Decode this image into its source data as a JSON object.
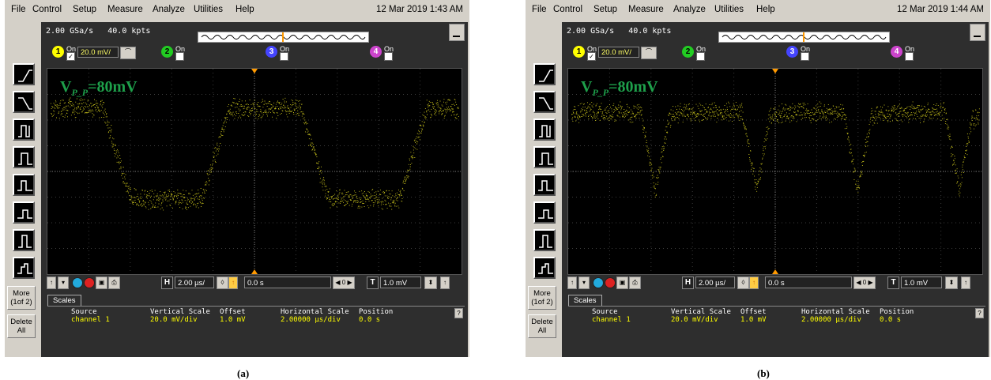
{
  "panels": [
    {
      "caption": "(a)",
      "menu": [
        "File",
        "Control",
        "Setup",
        "Measure",
        "Analyze",
        "Utilities",
        "Help"
      ],
      "datetime": "12 Mar 2019  1:43 AM",
      "acquisition": "2.00 GSa/s   40.0 kpts",
      "channels": [
        {
          "num": "1",
          "on_label": "On",
          "checked": "✓",
          "scale": "20.0 mV/",
          "color": "#ffff00"
        },
        {
          "num": "2",
          "on_label": "On",
          "checked": "",
          "color": "#22cc22"
        },
        {
          "num": "3",
          "on_label": "On",
          "checked": "",
          "color": "#4444ff"
        },
        {
          "num": "4",
          "on_label": "On",
          "checked": "",
          "color": "#cc44cc"
        }
      ],
      "annotation": {
        "v": "V",
        "sub": "P_P",
        "value": "=80mV"
      },
      "trace_shape": "square",
      "timebase": "2.00 µs/",
      "delay": "0.0 s",
      "trigger_level": "1.0 mV",
      "h_icon": "H",
      "t_icon": "T",
      "delay_nav": "◀ 0 ▶",
      "side_buttons": {
        "more": "More\n(1of 2)",
        "delete": "Delete\nAll"
      },
      "scales": {
        "tab": "Scales",
        "headers": [
          "Source",
          "Vertical Scale",
          "Offset",
          "Horizontal Scale",
          "Position"
        ],
        "values": [
          "channel 1",
          "20.0 mV/div",
          "1.0 mV",
          "2.00000 µs/div",
          "0.0 s"
        ],
        "help": "?"
      }
    },
    {
      "caption": "(b)",
      "menu": [
        "File",
        "Control",
        "Setup",
        "Measure",
        "Analyze",
        "Utilities",
        "Help"
      ],
      "datetime": "12 Mar 2019  1:44 AM",
      "acquisition": "2.00 GSa/s   40.0 kpts",
      "channels": [
        {
          "num": "1",
          "on_label": "On",
          "checked": "✓",
          "scale": "20.0 mV/",
          "color": "#ffff00"
        },
        {
          "num": "2",
          "on_label": "On",
          "checked": "",
          "color": "#22cc22"
        },
        {
          "num": "3",
          "on_label": "On",
          "checked": "",
          "color": "#4444ff"
        },
        {
          "num": "4",
          "on_label": "On",
          "checked": "",
          "color": "#cc44cc"
        }
      ],
      "annotation": {
        "v": "V",
        "sub": "P_P",
        "value": "=80mV"
      },
      "trace_shape": "notched",
      "timebase": "2.00 µs/",
      "delay": "0.0 s",
      "trigger_level": "1.0 mV",
      "h_icon": "H",
      "t_icon": "T",
      "delay_nav": "◀ 0 ▶",
      "side_buttons": {
        "more": "More\n(1of 2)",
        "delete": "Delete\nAll"
      },
      "scales": {
        "tab": "Scales",
        "headers": [
          "Source",
          "Vertical Scale",
          "Offset",
          "Horizontal Scale",
          "Position"
        ],
        "values": [
          "channel 1",
          "20.0 mV/div",
          "1.0 mV",
          "2.00000 µs/div",
          "0.0 s"
        ],
        "help": "?"
      }
    }
  ],
  "colors": {
    "trace": "#e8e020",
    "grid": "#555555",
    "annotation": "#1ea04b",
    "trigger_marker": "#ff9900"
  }
}
